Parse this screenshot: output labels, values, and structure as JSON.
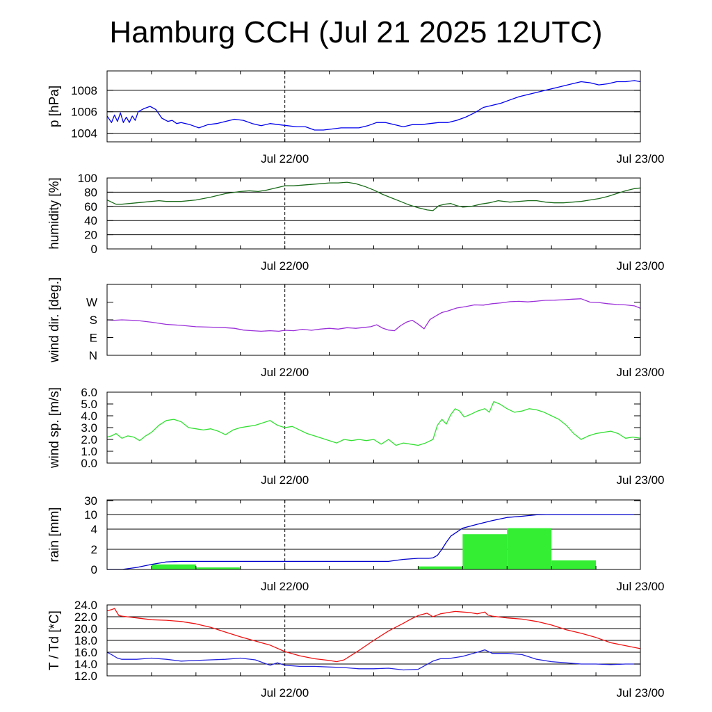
{
  "title": "Hamburg CCH (Jul 21 2025 12UTC)",
  "chart_data": [
    {
      "type": "line",
      "ylabel": "p [hPa]",
      "ylim": [
        1003.2,
        1009.8
      ],
      "yticks": [
        "1004",
        "1006",
        "1008"
      ],
      "ytick_values": [
        1004,
        1006,
        1008
      ],
      "xlim_hours": [
        0,
        36
      ],
      "xtick_labels": [
        "Jul 22/00",
        "Jul 23/00"
      ],
      "xtick_hours": [
        12,
        36
      ],
      "grid": true,
      "series": [
        {
          "color": "#0000ee",
          "x": [
            0,
            0.3,
            0.5,
            0.7,
            0.9,
            1.1,
            1.3,
            1.5,
            1.7,
            1.9,
            2.1,
            2.5,
            2.9,
            3.3,
            3.7,
            4.1,
            4.4,
            4.7,
            5.0,
            5.6,
            6.2,
            6.8,
            7.4,
            8.0,
            8.6,
            9.2,
            9.8,
            10.4,
            11.0,
            11.6,
            12.2,
            12.8,
            13.4,
            14.0,
            14.6,
            15.2,
            15.8,
            16.4,
            17.0,
            17.6,
            18.2,
            18.8,
            19.4,
            20.0,
            20.6,
            21.2,
            21.8,
            22.4,
            23.0,
            23.6,
            24.2,
            24.8,
            25.4,
            26.0,
            26.6,
            27.2,
            27.8,
            28.4,
            29.0,
            29.6,
            30.2,
            30.8,
            31.4,
            32.0,
            32.6,
            33.2,
            33.8,
            34.4,
            35.0,
            35.6,
            36.0
          ],
          "y": [
            1005.6,
            1005.0,
            1005.7,
            1005.1,
            1005.9,
            1005.0,
            1005.5,
            1005.0,
            1005.6,
            1005.2,
            1006.0,
            1006.3,
            1006.5,
            1006.2,
            1005.4,
            1005.1,
            1005.2,
            1004.9,
            1005.0,
            1004.8,
            1004.5,
            1004.8,
            1004.9,
            1005.1,
            1005.3,
            1005.2,
            1004.9,
            1004.7,
            1004.9,
            1004.8,
            1004.7,
            1004.6,
            1004.6,
            1004.3,
            1004.3,
            1004.4,
            1004.5,
            1004.5,
            1004.5,
            1004.7,
            1005.0,
            1005.0,
            1004.8,
            1004.6,
            1004.8,
            1004.8,
            1004.9,
            1005.0,
            1005.0,
            1005.2,
            1005.5,
            1005.9,
            1006.4,
            1006.6,
            1006.8,
            1007.1,
            1007.4,
            1007.6,
            1007.8,
            1008.0,
            1008.2,
            1008.4,
            1008.6,
            1008.8,
            1008.7,
            1008.5,
            1008.6,
            1008.8,
            1008.8,
            1008.9,
            1008.8
          ]
        }
      ]
    },
    {
      "type": "line",
      "ylabel": "humidity [%]",
      "ylim": [
        0,
        100
      ],
      "yticks": [
        "0",
        "20",
        "40",
        "60",
        "80",
        "100"
      ],
      "ytick_values": [
        0,
        20,
        40,
        60,
        80,
        100
      ],
      "xlim_hours": [
        0,
        36
      ],
      "xtick_labels": [
        "Jul 22/00",
        "Jul 23/00"
      ],
      "xtick_hours": [
        12,
        36
      ],
      "grid": true,
      "series": [
        {
          "color": "#1a6b1a",
          "x": [
            0,
            0.3,
            0.6,
            1.0,
            1.5,
            2.0,
            2.5,
            3.0,
            3.5,
            4.0,
            5.0,
            6.0,
            7.0,
            8.0,
            9.0,
            9.6,
            10.2,
            10.8,
            11.4,
            12.0,
            12.6,
            13.2,
            13.8,
            14.4,
            15.0,
            15.6,
            16.2,
            16.8,
            17.4,
            18.0,
            18.6,
            19.2,
            19.8,
            20.4,
            21.0,
            21.6,
            22.0,
            22.4,
            22.8,
            23.2,
            23.6,
            24.0,
            24.6,
            25.2,
            25.8,
            26.4,
            26.8,
            27.2,
            27.8,
            28.4,
            29.0,
            29.6,
            30.2,
            30.8,
            31.4,
            32.0,
            32.6,
            33.2,
            33.8,
            34.4,
            35.0,
            35.6,
            36.0
          ],
          "y": [
            69,
            66,
            63,
            63,
            64,
            65,
            66,
            67,
            68,
            67,
            67,
            69,
            73,
            78,
            81,
            82,
            81,
            83,
            86,
            89,
            89,
            90,
            91,
            92,
            93,
            93,
            94,
            92,
            88,
            83,
            77,
            72,
            67,
            62,
            58,
            55,
            54,
            61,
            63,
            64,
            61,
            59,
            60,
            63,
            65,
            68,
            67,
            66,
            67,
            68,
            68,
            66,
            65,
            65,
            66,
            67,
            69,
            71,
            74,
            78,
            82,
            85,
            86
          ]
        }
      ]
    },
    {
      "type": "line",
      "ylabel": "wind dir. [deg.]",
      "ylim": [
        0,
        360
      ],
      "yticks": [
        "N",
        "E",
        "S",
        "W"
      ],
      "ytick_values": [
        0,
        90,
        180,
        270
      ],
      "xlim_hours": [
        0,
        36
      ],
      "xtick_labels": [
        "Jul 22/00",
        "Jul 23/00"
      ],
      "xtick_hours": [
        12,
        36
      ],
      "grid": false,
      "series": [
        {
          "color": "#9b30d9",
          "x": [
            0,
            0.5,
            1.0,
            2.0,
            3.0,
            4.0,
            5.0,
            6.0,
            7.0,
            8.0,
            8.6,
            9.2,
            9.8,
            10.4,
            11.0,
            11.6,
            12.0,
            12.6,
            13.2,
            13.8,
            14.4,
            15.0,
            15.6,
            16.2,
            16.8,
            17.4,
            17.8,
            18.2,
            18.6,
            19.0,
            19.4,
            19.8,
            20.2,
            20.6,
            21.0,
            21.4,
            21.8,
            22.2,
            22.6,
            23.0,
            23.6,
            24.2,
            24.8,
            25.4,
            26.0,
            26.6,
            27.2,
            27.8,
            28.4,
            29.0,
            29.6,
            30.2,
            30.8,
            31.4,
            32.0,
            32.6,
            33.2,
            33.8,
            34.4,
            35.0,
            35.6,
            36.0
          ],
          "y": [
            180,
            178,
            180,
            177,
            168,
            157,
            152,
            145,
            143,
            140,
            137,
            128,
            125,
            122,
            125,
            122,
            127,
            125,
            132,
            127,
            133,
            137,
            133,
            140,
            137,
            142,
            145,
            155,
            138,
            128,
            125,
            150,
            168,
            178,
            158,
            135,
            182,
            200,
            217,
            225,
            240,
            247,
            256,
            255,
            262,
            266,
            272,
            274,
            271,
            275,
            279,
            280,
            282,
            285,
            287,
            270,
            268,
            262,
            258,
            256,
            251,
            239
          ]
        }
      ]
    },
    {
      "type": "line",
      "ylabel": "wind sp. [m/s]",
      "ylim": [
        0,
        6.0
      ],
      "yticks": [
        "0.0",
        "1.0",
        "2.0",
        "3.0",
        "4.0",
        "5.0",
        "6.0"
      ],
      "ytick_values": [
        0,
        1,
        2,
        3,
        4,
        5,
        6
      ],
      "xlim_hours": [
        0,
        36
      ],
      "xtick_labels": [
        "Jul 22/00",
        "Jul 23/00"
      ],
      "xtick_hours": [
        12,
        36
      ],
      "grid": false,
      "series": [
        {
          "color": "#33e033",
          "x": [
            0,
            0.3,
            0.6,
            1.0,
            1.4,
            1.8,
            2.2,
            2.6,
            3.0,
            3.5,
            4.0,
            4.5,
            5.0,
            5.5,
            6.0,
            6.5,
            7.0,
            7.5,
            8.0,
            8.5,
            9.0,
            9.5,
            10.0,
            10.5,
            11.0,
            11.5,
            12.0,
            12.5,
            13.0,
            13.5,
            14.0,
            14.5,
            15.0,
            15.5,
            16.0,
            16.5,
            17.0,
            17.5,
            18.0,
            18.5,
            19.0,
            19.5,
            20.0,
            20.5,
            21.0,
            21.5,
            22.0,
            22.3,
            22.6,
            22.9,
            23.2,
            23.5,
            23.8,
            24.1,
            24.5,
            25.0,
            25.5,
            25.8,
            26.1,
            26.5,
            27.0,
            27.5,
            28.0,
            28.5,
            29.0,
            29.5,
            30.0,
            30.5,
            31.0,
            31.5,
            32.0,
            32.5,
            33.0,
            33.5,
            34.0,
            34.5,
            35.0,
            35.5,
            36.0
          ],
          "y": [
            2.2,
            2.3,
            2.5,
            2.1,
            2.3,
            2.2,
            1.9,
            2.3,
            2.6,
            3.2,
            3.6,
            3.7,
            3.5,
            3.0,
            2.9,
            2.8,
            2.9,
            2.7,
            2.4,
            2.8,
            3.0,
            3.1,
            3.2,
            3.4,
            3.6,
            3.2,
            3.0,
            3.1,
            2.8,
            2.5,
            2.3,
            2.1,
            1.9,
            1.7,
            2.0,
            1.9,
            2.0,
            1.9,
            2.0,
            1.6,
            2.0,
            1.5,
            1.7,
            1.6,
            1.5,
            1.7,
            2.0,
            3.2,
            3.7,
            3.3,
            4.1,
            4.6,
            4.4,
            3.9,
            4.1,
            4.4,
            4.6,
            4.3,
            5.2,
            5.0,
            4.6,
            4.3,
            4.4,
            4.6,
            4.5,
            4.3,
            4.0,
            3.7,
            3.2,
            2.5,
            2.0,
            2.3,
            2.5,
            2.6,
            2.7,
            2.5,
            2.1,
            2.2,
            2.1
          ]
        }
      ]
    },
    {
      "type": "bar",
      "ylabel": "rain [mm]",
      "yticks": [
        "0",
        "2",
        "4",
        "10",
        "30"
      ],
      "ytick_values": [
        0,
        2,
        4,
        10,
        30
      ],
      "scale": "piecewise",
      "xlim_hours": [
        0,
        36
      ],
      "xtick_labels": [
        "Jul 22/00",
        "Jul 23/00"
      ],
      "xtick_hours": [
        12,
        36
      ],
      "grid": true,
      "bars": {
        "color": "#33ee33",
        "bin_start_hours": [
          0,
          3,
          6,
          9,
          12,
          15,
          18,
          21,
          24,
          27,
          30,
          33
        ],
        "bin_hours": 3,
        "values": [
          0,
          0.5,
          0.2,
          0,
          0,
          0,
          0,
          0.3,
          3.5,
          4.4,
          0.9,
          0
        ]
      },
      "series": [
        {
          "color": "#0000cc",
          "x": [
            0,
            1.0,
            2.0,
            3.0,
            4.0,
            5.0,
            6.0,
            9.0,
            12.0,
            15.0,
            18.0,
            19.0,
            20.0,
            21.0,
            21.7,
            22.0,
            22.3,
            22.6,
            22.9,
            23.2,
            24.0,
            25.0,
            26.0,
            27.0,
            28.0,
            29.0,
            30.0,
            33.0,
            36.0
          ],
          "y": [
            0,
            0,
            0.2,
            0.5,
            0.75,
            0.8,
            0.8,
            0.8,
            0.8,
            0.8,
            0.8,
            0.8,
            1.0,
            1.1,
            1.1,
            1.15,
            1.4,
            2.0,
            2.7,
            3.3,
            4.4,
            6.0,
            7.5,
            8.8,
            9.3,
            9.9,
            10.0,
            10.0,
            10.0
          ]
        }
      ]
    },
    {
      "type": "line",
      "ylabel": "T / Td [*C]",
      "ylim": [
        12.0,
        24.0
      ],
      "yticks": [
        "12.0",
        "14.0",
        "16.0",
        "18.0",
        "20.0",
        "22.0",
        "24.0"
      ],
      "ytick_values": [
        12,
        14,
        16,
        18,
        20,
        22,
        24
      ],
      "xlim_hours": [
        0,
        36
      ],
      "xtick_labels": [
        "Jul 22/00",
        "Jul 23/00"
      ],
      "xtick_hours": [
        12,
        36
      ],
      "grid": true,
      "series": [
        {
          "color": "#ee1111",
          "x": [
            0,
            0.3,
            0.5,
            0.8,
            1.0,
            2.0,
            3.0,
            4.0,
            5.0,
            6.0,
            7.0,
            8.0,
            9.0,
            10.0,
            11.0,
            12.0,
            13.0,
            14.0,
            15.0,
            15.5,
            16.0,
            17.0,
            18.0,
            19.0,
            20.0,
            20.5,
            21.0,
            21.6,
            22.0,
            22.5,
            23.0,
            23.5,
            24.0,
            24.5,
            25.0,
            25.5,
            25.7,
            26.0,
            27.0,
            28.0,
            29.0,
            30.0,
            31.0,
            32.0,
            33.0,
            34.0,
            35.0,
            36.0
          ],
          "y": [
            23.0,
            23.2,
            23.4,
            22.2,
            22.1,
            21.8,
            21.5,
            21.4,
            21.2,
            20.8,
            20.2,
            19.4,
            18.6,
            17.9,
            17.2,
            16.1,
            15.4,
            14.9,
            14.6,
            14.4,
            14.7,
            16.3,
            18.0,
            19.6,
            20.9,
            21.6,
            22.2,
            22.6,
            22.0,
            22.5,
            22.7,
            22.9,
            22.8,
            22.7,
            22.5,
            22.8,
            22.3,
            22.1,
            21.8,
            21.6,
            21.2,
            20.6,
            19.8,
            19.2,
            18.5,
            17.6,
            17.1,
            16.6
          ]
        },
        {
          "color": "#2222dd",
          "x": [
            0,
            0.3,
            0.7,
            1.0,
            2.0,
            3.0,
            4.0,
            5.0,
            6.0,
            7.0,
            8.0,
            9.0,
            10.0,
            11.0,
            11.5,
            12.0,
            13.0,
            14.0,
            15.0,
            16.0,
            17.0,
            18.0,
            19.0,
            20.0,
            21.0,
            22.0,
            22.5,
            23.0,
            24.0,
            25.0,
            25.5,
            26.0,
            27.0,
            28.0,
            29.0,
            30.0,
            31.0,
            32.0,
            33.0,
            34.0,
            35.0,
            36.0
          ],
          "y": [
            16.0,
            15.6,
            15.0,
            14.8,
            14.8,
            15.0,
            14.8,
            14.5,
            14.6,
            14.7,
            14.8,
            15.0,
            14.7,
            13.8,
            14.2,
            13.8,
            13.6,
            13.6,
            13.5,
            13.4,
            13.2,
            13.2,
            13.3,
            13.0,
            13.1,
            14.5,
            14.9,
            14.9,
            15.3,
            16.0,
            16.4,
            15.8,
            15.8,
            15.6,
            14.8,
            14.4,
            14.2,
            14.0,
            14.0,
            13.9,
            14.0,
            14.0
          ]
        }
      ]
    }
  ]
}
